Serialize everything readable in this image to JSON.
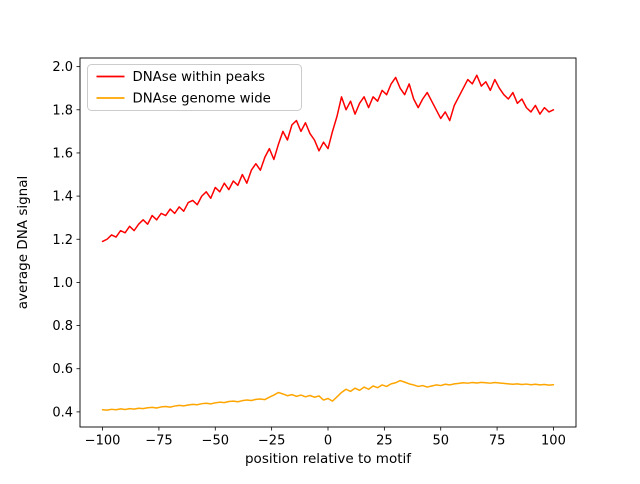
{
  "figure": {
    "background": "#ffffff"
  },
  "chart_data": {
    "type": "line",
    "title": "",
    "xlabel": "position relative to motif",
    "ylabel": "average DNA signal",
    "xlim": [
      -110,
      110
    ],
    "ylim": [
      0.33,
      2.04
    ],
    "xticks": [
      -100,
      -75,
      -50,
      -25,
      0,
      25,
      50,
      75,
      100
    ],
    "yticks": [
      0.4,
      0.6,
      0.8,
      1.0,
      1.2,
      1.4,
      1.6,
      1.8,
      2.0
    ],
    "grid": false,
    "legend_position": "upper left",
    "legend_border_color": "#cccccc",
    "x": [
      -100,
      -98,
      -96,
      -94,
      -92,
      -90,
      -88,
      -86,
      -84,
      -82,
      -80,
      -78,
      -76,
      -74,
      -72,
      -70,
      -68,
      -66,
      -64,
      -62,
      -60,
      -58,
      -56,
      -54,
      -52,
      -50,
      -48,
      -46,
      -44,
      -42,
      -40,
      -38,
      -36,
      -34,
      -32,
      -30,
      -28,
      -26,
      -24,
      -22,
      -20,
      -18,
      -16,
      -14,
      -12,
      -10,
      -8,
      -6,
      -4,
      -2,
      0,
      2,
      4,
      6,
      8,
      10,
      12,
      14,
      16,
      18,
      20,
      22,
      24,
      26,
      28,
      30,
      32,
      34,
      36,
      38,
      40,
      42,
      44,
      46,
      48,
      50,
      52,
      54,
      56,
      58,
      60,
      62,
      64,
      66,
      68,
      70,
      72,
      74,
      76,
      78,
      80,
      82,
      84,
      86,
      88,
      90,
      92,
      94,
      96,
      98,
      100
    ],
    "series": [
      {
        "name": "DNAse within peaks",
        "color": "#ff0000",
        "values": [
          1.19,
          1.2,
          1.22,
          1.21,
          1.24,
          1.23,
          1.26,
          1.24,
          1.27,
          1.29,
          1.27,
          1.31,
          1.29,
          1.32,
          1.31,
          1.34,
          1.32,
          1.35,
          1.33,
          1.37,
          1.38,
          1.36,
          1.4,
          1.42,
          1.39,
          1.44,
          1.42,
          1.46,
          1.43,
          1.47,
          1.45,
          1.5,
          1.46,
          1.52,
          1.55,
          1.52,
          1.58,
          1.62,
          1.57,
          1.64,
          1.7,
          1.66,
          1.73,
          1.75,
          1.7,
          1.74,
          1.69,
          1.66,
          1.61,
          1.65,
          1.62,
          1.7,
          1.77,
          1.86,
          1.8,
          1.84,
          1.78,
          1.83,
          1.86,
          1.81,
          1.86,
          1.84,
          1.89,
          1.87,
          1.92,
          1.95,
          1.9,
          1.87,
          1.92,
          1.85,
          1.81,
          1.85,
          1.88,
          1.84,
          1.8,
          1.76,
          1.79,
          1.75,
          1.82,
          1.86,
          1.9,
          1.94,
          1.92,
          1.96,
          1.91,
          1.93,
          1.89,
          1.94,
          1.9,
          1.87,
          1.85,
          1.88,
          1.83,
          1.85,
          1.81,
          1.79,
          1.82,
          1.78,
          1.81,
          1.79,
          1.8
        ]
      },
      {
        "name": "DNAse genome wide",
        "color": "#ffa500",
        "values": [
          0.41,
          0.408,
          0.412,
          0.41,
          0.414,
          0.411,
          0.415,
          0.413,
          0.417,
          0.415,
          0.419,
          0.421,
          0.418,
          0.423,
          0.425,
          0.422,
          0.427,
          0.43,
          0.428,
          0.432,
          0.435,
          0.433,
          0.438,
          0.44,
          0.437,
          0.442,
          0.445,
          0.443,
          0.448,
          0.45,
          0.447,
          0.452,
          0.455,
          0.453,
          0.458,
          0.46,
          0.457,
          0.468,
          0.478,
          0.49,
          0.483,
          0.475,
          0.48,
          0.472,
          0.478,
          0.47,
          0.476,
          0.468,
          0.474,
          0.455,
          0.462,
          0.45,
          0.47,
          0.49,
          0.505,
          0.495,
          0.51,
          0.5,
          0.515,
          0.505,
          0.52,
          0.512,
          0.525,
          0.518,
          0.53,
          0.535,
          0.545,
          0.538,
          0.53,
          0.525,
          0.518,
          0.522,
          0.515,
          0.52,
          0.525,
          0.522,
          0.528,
          0.525,
          0.53,
          0.532,
          0.535,
          0.533,
          0.536,
          0.534,
          0.537,
          0.535,
          0.533,
          0.536,
          0.534,
          0.532,
          0.53,
          0.528,
          0.53,
          0.527,
          0.529,
          0.526,
          0.528,
          0.525,
          0.527,
          0.524,
          0.526
        ]
      }
    ]
  }
}
